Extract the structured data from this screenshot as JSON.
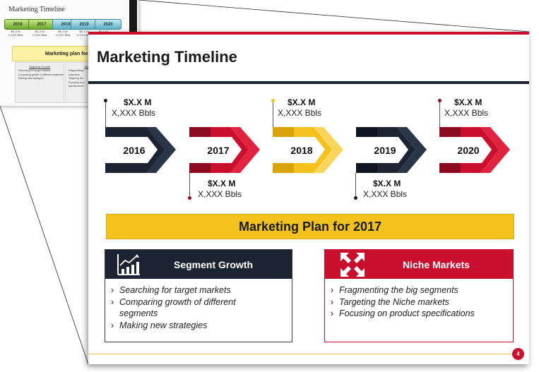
{
  "thumbnail": {
    "title": "Marketing Timeline",
    "years": [
      "2016",
      "2017",
      "2018",
      "2019",
      "2020"
    ],
    "values": [
      {
        "amount": "$X.X M",
        "volume": "X,XXX Bbls"
      },
      {
        "amount": "$X.X M",
        "volume": "X,XXX Bbls"
      },
      {
        "amount": "$X.X M",
        "volume": "X,XXX Bbls"
      },
      {
        "amount": "$X.X M",
        "volume": "X,XXX Bbls"
      },
      {
        "amount": "$X.X M",
        "volume": ""
      }
    ],
    "plan": "Marketing plan for 2017",
    "box1": {
      "title": "Segment Growth",
      "items": [
        "Searching for target markets",
        "Comparing growth of different segments",
        "Making new strategies"
      ]
    },
    "box2": {
      "title": "Niche m",
      "items": [
        "Fragmenting t",
        "segments",
        "Targeting the",
        "Focusing on p",
        "specifications"
      ]
    }
  },
  "slide": {
    "title": "Marketing Timeline",
    "timeline": [
      {
        "year": "2016",
        "amount": "$X.X M",
        "volume": "X,XXX Bbls",
        "position": "top",
        "color": "#1c2433"
      },
      {
        "year": "2017",
        "amount": "$X.X M",
        "volume": "X,XXX Bbls",
        "position": "bottom",
        "color": "#c8102e"
      },
      {
        "year": "2018",
        "amount": "$X.X M",
        "volume": "X,XXX Bbls",
        "position": "top",
        "color": "#f4c21c"
      },
      {
        "year": "2019",
        "amount": "$X.X M",
        "volume": "X,XXX Bbls",
        "position": "bottom",
        "color": "#1c2433"
      },
      {
        "year": "2020",
        "amount": "$X.X M",
        "volume": "X,XXX Bbls",
        "position": "top",
        "color": "#c8102e"
      }
    ],
    "plan_banner": "Marketing Plan for 2017",
    "segment_card": {
      "title": "Segment Growth",
      "icon": "growth-chart-icon",
      "header_color": "#1c2433",
      "items": [
        "Searching for target markets",
        "Comparing growth of different segments",
        "Making new strategies"
      ]
    },
    "niche_card": {
      "title": "Niche Markets",
      "icon": "expand-arrows-icon",
      "header_color": "#c8102e",
      "items": [
        "Fragmenting the big segments",
        "Targeting the Niche markets",
        "Focusing on product specifications"
      ]
    },
    "page_number": "4"
  },
  "colors": {
    "accent_red": "#c8102e",
    "navy": "#1c2433",
    "gold": "#f4c21c"
  }
}
